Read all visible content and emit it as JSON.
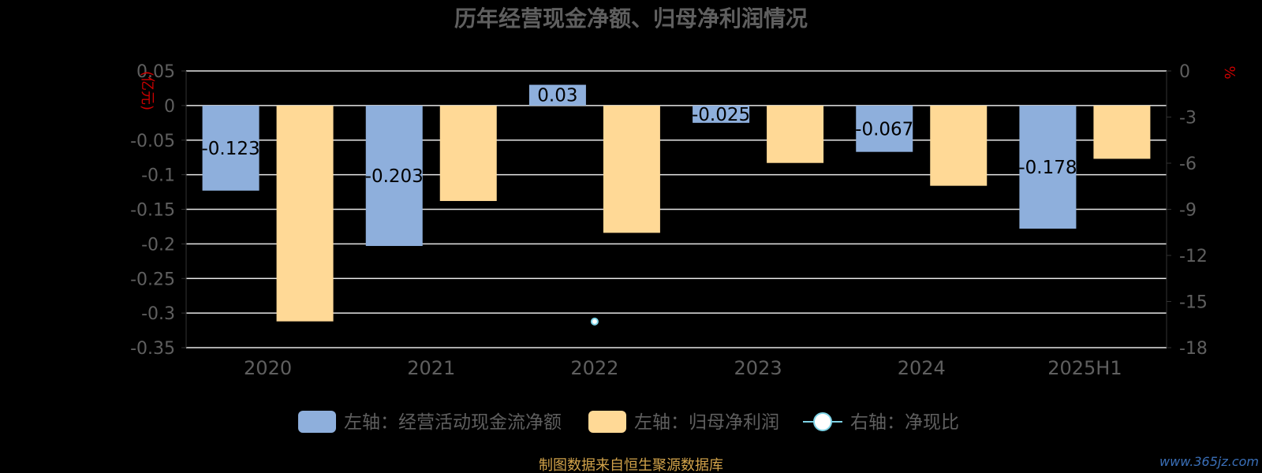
{
  "chart_data": {
    "type": "bar",
    "title": "历年经营现金净额、归母净利润情况",
    "categories": [
      "2020",
      "2021",
      "2022",
      "2023",
      "2024",
      "2025H1"
    ],
    "left_axis": {
      "unit_label": "(亿元)",
      "ylim": [
        -0.35,
        0.05
      ],
      "ticks": [
        0.05,
        0,
        -0.05,
        -0.1,
        -0.15,
        -0.2,
        -0.25,
        -0.3,
        -0.35
      ],
      "tick_labels": [
        "0.05",
        "0",
        "-0.05",
        "-0.1",
        "-0.15",
        "-0.2",
        "-0.25",
        "-0.3",
        "-0.35"
      ]
    },
    "right_axis": {
      "unit_label": "%",
      "ylim": [
        -18,
        0
      ],
      "ticks": [
        0,
        -3,
        -6,
        -9,
        -12,
        -15,
        -18
      ],
      "tick_labels": [
        "0",
        "-3",
        "-6",
        "-9",
        "-12",
        "-15",
        "-18"
      ]
    },
    "series": [
      {
        "name": "左轴：经营活动现金流净额",
        "axis": "left",
        "color": "#8EAFDC",
        "values": [
          -0.123,
          -0.203,
          0.03,
          -0.025,
          -0.067,
          -0.178
        ],
        "labels": [
          "-0.123",
          "-0.203",
          "0.03",
          "-0.025",
          "-0.067",
          "-0.178"
        ]
      },
      {
        "name": "左轴：归母净利润",
        "axis": "left",
        "color": "#FFD996",
        "values": [
          -0.312,
          -0.138,
          -0.184,
          -0.083,
          -0.116,
          -0.077
        ]
      },
      {
        "name": "右轴：净现比",
        "axis": "right",
        "type": "line",
        "color": "#7ED3E6",
        "values": [
          null,
          null,
          -16.3,
          null,
          null,
          null
        ]
      }
    ],
    "grid": true,
    "legend_position": "bottom-center"
  },
  "footer": {
    "source_text": "制图数据来自恒生聚源数据库",
    "watermark": "www.365jz.com"
  },
  "colors": {
    "title": "#5F5F5F",
    "tick": "#5F5F5F",
    "axis_unit": "#CC0000",
    "grid": "#E6E6E6",
    "bar_label": "#000000",
    "source": "#D1A24A"
  }
}
